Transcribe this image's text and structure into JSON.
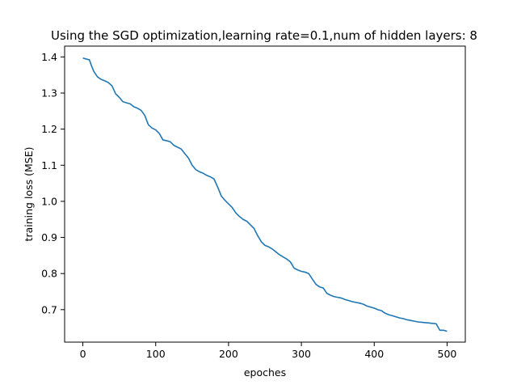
{
  "chart_data": {
    "type": "line",
    "title": "Using the SGD optimization,learning rate=0.1,num of hidden layers: 8",
    "xlabel": "epoches",
    "ylabel": "training loss (MSE)",
    "xlim": [
      -25,
      525
    ],
    "ylim": [
      0.61,
      1.43
    ],
    "xticks": [
      0,
      100,
      200,
      300,
      400,
      500
    ],
    "yticks": [
      0.7,
      0.8,
      0.9,
      1.0,
      1.1,
      1.2,
      1.3,
      1.4
    ],
    "xtick_labels": [
      "0",
      "100",
      "200",
      "300",
      "400",
      "500"
    ],
    "ytick_labels": [
      "0.7",
      "0.8",
      "0.9",
      "1.0",
      "1.1",
      "1.2",
      "1.3",
      "1.4"
    ],
    "grid": false,
    "series": [
      {
        "color": "#1f77b4",
        "x": [
          0,
          5,
          9,
          12,
          15,
          20,
          25,
          30,
          35,
          40,
          45,
          50,
          55,
          60,
          65,
          70,
          75,
          80,
          85,
          90,
          95,
          100,
          105,
          110,
          115,
          120,
          125,
          130,
          135,
          140,
          145,
          150,
          155,
          160,
          165,
          170,
          175,
          180,
          185,
          190,
          195,
          200,
          205,
          210,
          215,
          220,
          225,
          230,
          235,
          240,
          245,
          250,
          255,
          260,
          265,
          270,
          275,
          280,
          285,
          290,
          295,
          300,
          305,
          310,
          315,
          320,
          325,
          330,
          335,
          340,
          345,
          350,
          355,
          360,
          365,
          370,
          375,
          380,
          385,
          390,
          395,
          400,
          405,
          410,
          415,
          420,
          425,
          430,
          435,
          440,
          445,
          450,
          455,
          460,
          465,
          470,
          475,
          480,
          485,
          490,
          495,
          500
        ],
        "y": [
          1.397,
          1.394,
          1.392,
          1.375,
          1.36,
          1.345,
          1.338,
          1.334,
          1.329,
          1.32,
          1.298,
          1.288,
          1.276,
          1.273,
          1.27,
          1.262,
          1.258,
          1.252,
          1.238,
          1.212,
          1.203,
          1.198,
          1.188,
          1.17,
          1.168,
          1.165,
          1.155,
          1.15,
          1.145,
          1.132,
          1.12,
          1.1,
          1.088,
          1.082,
          1.078,
          1.072,
          1.068,
          1.062,
          1.04,
          1.015,
          1.003,
          0.993,
          0.983,
          0.968,
          0.958,
          0.95,
          0.945,
          0.935,
          0.925,
          0.905,
          0.888,
          0.878,
          0.874,
          0.868,
          0.86,
          0.852,
          0.846,
          0.84,
          0.832,
          0.815,
          0.81,
          0.806,
          0.804,
          0.8,
          0.785,
          0.77,
          0.763,
          0.76,
          0.745,
          0.74,
          0.736,
          0.734,
          0.732,
          0.728,
          0.725,
          0.722,
          0.72,
          0.718,
          0.715,
          0.71,
          0.707,
          0.704,
          0.7,
          0.697,
          0.69,
          0.686,
          0.683,
          0.68,
          0.677,
          0.675,
          0.672,
          0.67,
          0.668,
          0.666,
          0.665,
          0.664,
          0.663,
          0.662,
          0.661,
          0.643,
          0.643,
          0.64
        ]
      }
    ]
  }
}
